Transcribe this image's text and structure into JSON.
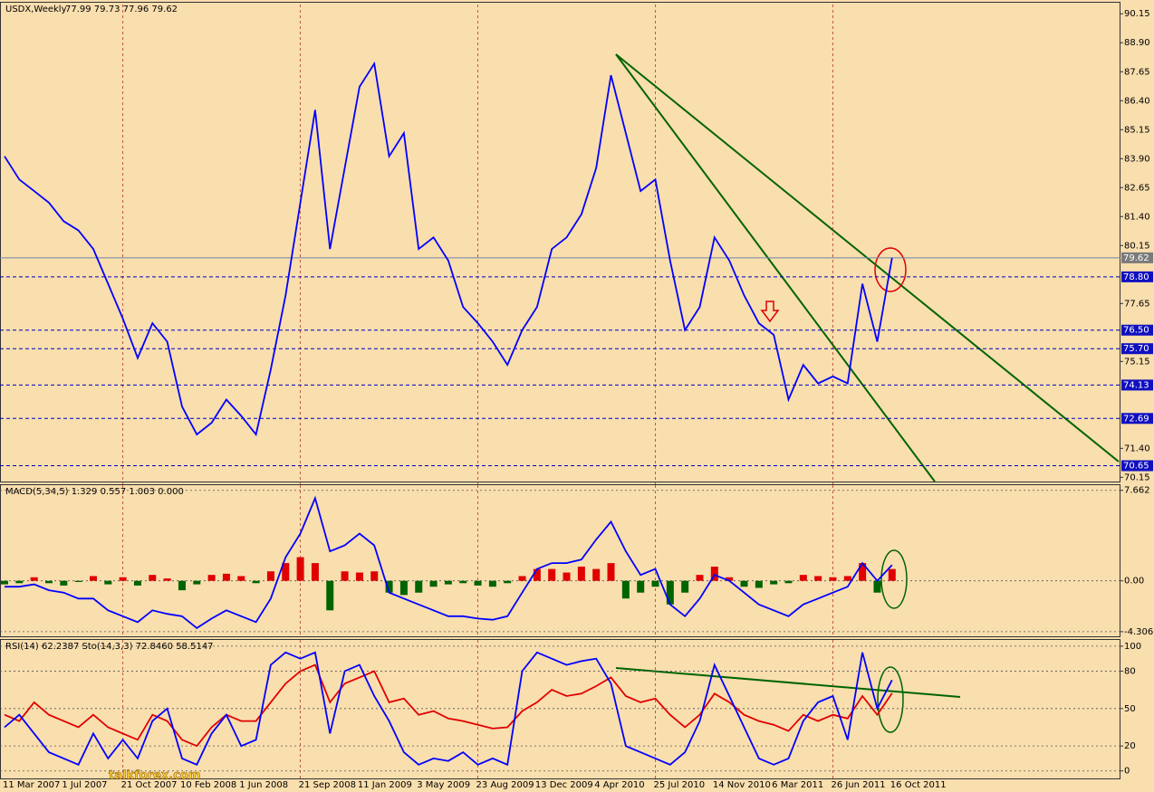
{
  "chart_data": [
    {
      "type": "line",
      "title": "USDX,Weekly",
      "subtitle": "77.99 79.73 77.96 79.62",
      "color": "#0000ff",
      "categories": [
        "11 Mar 2007",
        null,
        null,
        null,
        "1 Jul 2007",
        null,
        null,
        null,
        "21 Oct 2007",
        null,
        null,
        null,
        "10 Feb 2008",
        null,
        null,
        null,
        "1 Jun 2008",
        null,
        null,
        null,
        "21 Sep 2008",
        null,
        null,
        null,
        "11 Jan 2009",
        null,
        null,
        null,
        "3 May 2009",
        null,
        null,
        null,
        "23 Aug 2009",
        null,
        null,
        null,
        "13 Dec 2009",
        null,
        null,
        null,
        "4 Apr 2010",
        null,
        null,
        null,
        "25 Jul 2010",
        null,
        null,
        null,
        "14 Nov 2010",
        null,
        null,
        null,
        "6 Mar 2011",
        null,
        null,
        null,
        "26 Jun 2011",
        null,
        null,
        null,
        "16 Oct 2011"
      ],
      "values": [
        84.0,
        83.0,
        82.5,
        82.0,
        81.2,
        80.8,
        80.0,
        78.5,
        77.0,
        75.3,
        76.8,
        76.0,
        73.2,
        72.0,
        72.5,
        73.5,
        72.8,
        72.0,
        74.8,
        78.0,
        82.0,
        86.0,
        80.0,
        83.5,
        87.0,
        88.0,
        84.0,
        85.0,
        80.0,
        80.5,
        79.5,
        77.5,
        76.8,
        76.0,
        75.0,
        76.5,
        77.5,
        80.0,
        80.5,
        81.5,
        83.5,
        87.5,
        85.0,
        82.5,
        83.0,
        79.5,
        76.5,
        77.5,
        80.5,
        79.5,
        78.0,
        76.8,
        76.3,
        73.5,
        75.0,
        74.2,
        74.5,
        74.2,
        78.5,
        76.0,
        79.62
      ],
      "ylim": [
        69.85,
        90.55
      ],
      "yticks": [
        90.15,
        {
          "value": 88.9,
          "label": "88.90"
        },
        87.65,
        {
          "value": 86.4,
          "label": "86.40"
        },
        85.15,
        {
          "value": 83.9,
          "label": "83.90"
        },
        82.65,
        {
          "value": 81.4,
          "label": "81.40"
        },
        80.15,
        77.65,
        75.15,
        {
          "value": 71.4,
          "label": "71.40"
        },
        70.15
      ],
      "levels": [
        79.62,
        {
          "value": 78.8,
          "label": "78.80"
        },
        {
          "value": 76.5,
          "label": "76.50"
        },
        {
          "value": 75.7,
          "label": "75.70"
        },
        74.13,
        72.69,
        {
          "value": 70.65,
          "label": "70.65"
        }
      ],
      "watermark": "talkforex.com"
    },
    {
      "type": "macd",
      "title": "MACD(5,34,5) 1.329 0.557 1.003 0.000",
      "color_up": "#e00000",
      "color_down": "#006400",
      "line_color": "#0000ff",
      "values": [
        -0.3,
        -0.2,
        0.3,
        -0.2,
        -0.4,
        -0.1,
        0.4,
        -0.3,
        0.3,
        -0.4,
        0.5,
        0.2,
        -0.8,
        -0.3,
        0.5,
        0.6,
        0.4,
        -0.2,
        0.8,
        1.5,
        2.0,
        1.5,
        -2.5,
        0.8,
        0.7,
        0.8,
        -1.0,
        -1.2,
        -1.0,
        -0.5,
        -0.3,
        -0.2,
        -0.4,
        -0.5,
        -0.2,
        0.4,
        1.0,
        1.0,
        0.7,
        1.2,
        1.0,
        1.5,
        -1.5,
        -1.0,
        -0.5,
        -2.0,
        -1.0,
        0.5,
        1.2,
        0.3,
        -0.5,
        -0.6,
        -0.3,
        -0.2,
        0.5,
        0.4,
        0.3,
        0.4,
        1.5,
        -1.0,
        1.0
      ],
      "line_values": [
        -0.5,
        -0.5,
        -0.3,
        -0.8,
        -1.0,
        -1.5,
        -1.5,
        -2.5,
        -3.0,
        -3.5,
        -2.5,
        -2.8,
        -3.0,
        -4.0,
        -3.2,
        -2.5,
        -3.0,
        -3.5,
        -1.5,
        2.0,
        4.0,
        7.0,
        2.5,
        3.0,
        4.0,
        3.0,
        -1.0,
        -1.5,
        -2.0,
        -2.5,
        -3.0,
        -3.0,
        -3.2,
        -3.3,
        -3.0,
        -1.0,
        1.0,
        1.5,
        1.5,
        1.8,
        3.5,
        5.0,
        2.5,
        0.5,
        1.0,
        -2.0,
        -3.0,
        -1.5,
        0.5,
        0.0,
        -1.0,
        -2.0,
        -2.5,
        -3.0,
        -2.0,
        -1.5,
        -1.0,
        -0.5,
        1.5,
        0.0,
        1.33
      ],
      "ylim": [
        -4.7,
        8.1
      ],
      "yticks": [
        7.662,
        {
          "value": 0,
          "label": "0.00"
        },
        -4.306
      ]
    },
    {
      "type": "line",
      "title": "RSI(14) 62.2387 Sto(14,3,3) 72.8460 58.5147",
      "series": [
        {
          "color": "#e00000",
          "values": [
            45,
            40,
            55,
            45,
            40,
            35,
            45,
            35,
            30,
            25,
            45,
            40,
            25,
            20,
            35,
            45,
            40,
            40,
            55,
            70,
            80,
            85,
            55,
            70,
            75,
            80,
            55,
            58,
            45,
            48,
            42,
            40,
            37,
            34,
            35,
            48,
            55,
            65,
            60,
            62,
            68,
            75,
            60,
            55,
            58,
            45,
            35,
            45,
            62,
            55,
            45,
            40,
            37,
            32,
            45,
            40,
            45,
            42,
            60,
            45,
            62.24
          ]
        },
        {
          "color": "#0000ff",
          "values": [
            35,
            45,
            30,
            15,
            10,
            5,
            30,
            10,
            25,
            10,
            40,
            50,
            10,
            5,
            30,
            45,
            20,
            25,
            85,
            95,
            90,
            95,
            30,
            80,
            85,
            60,
            40,
            15,
            5,
            10,
            8,
            15,
            5,
            10,
            5,
            80,
            95,
            90,
            85,
            88,
            90,
            70,
            20,
            15,
            10,
            5,
            15,
            40,
            85,
            60,
            35,
            10,
            5,
            10,
            40,
            55,
            60,
            25,
            95,
            50,
            72.85
          ]
        }
      ],
      "ylim": [
        -6,
        105
      ],
      "yticks": [
        100,
        80,
        50,
        20,
        0
      ]
    }
  ]
}
